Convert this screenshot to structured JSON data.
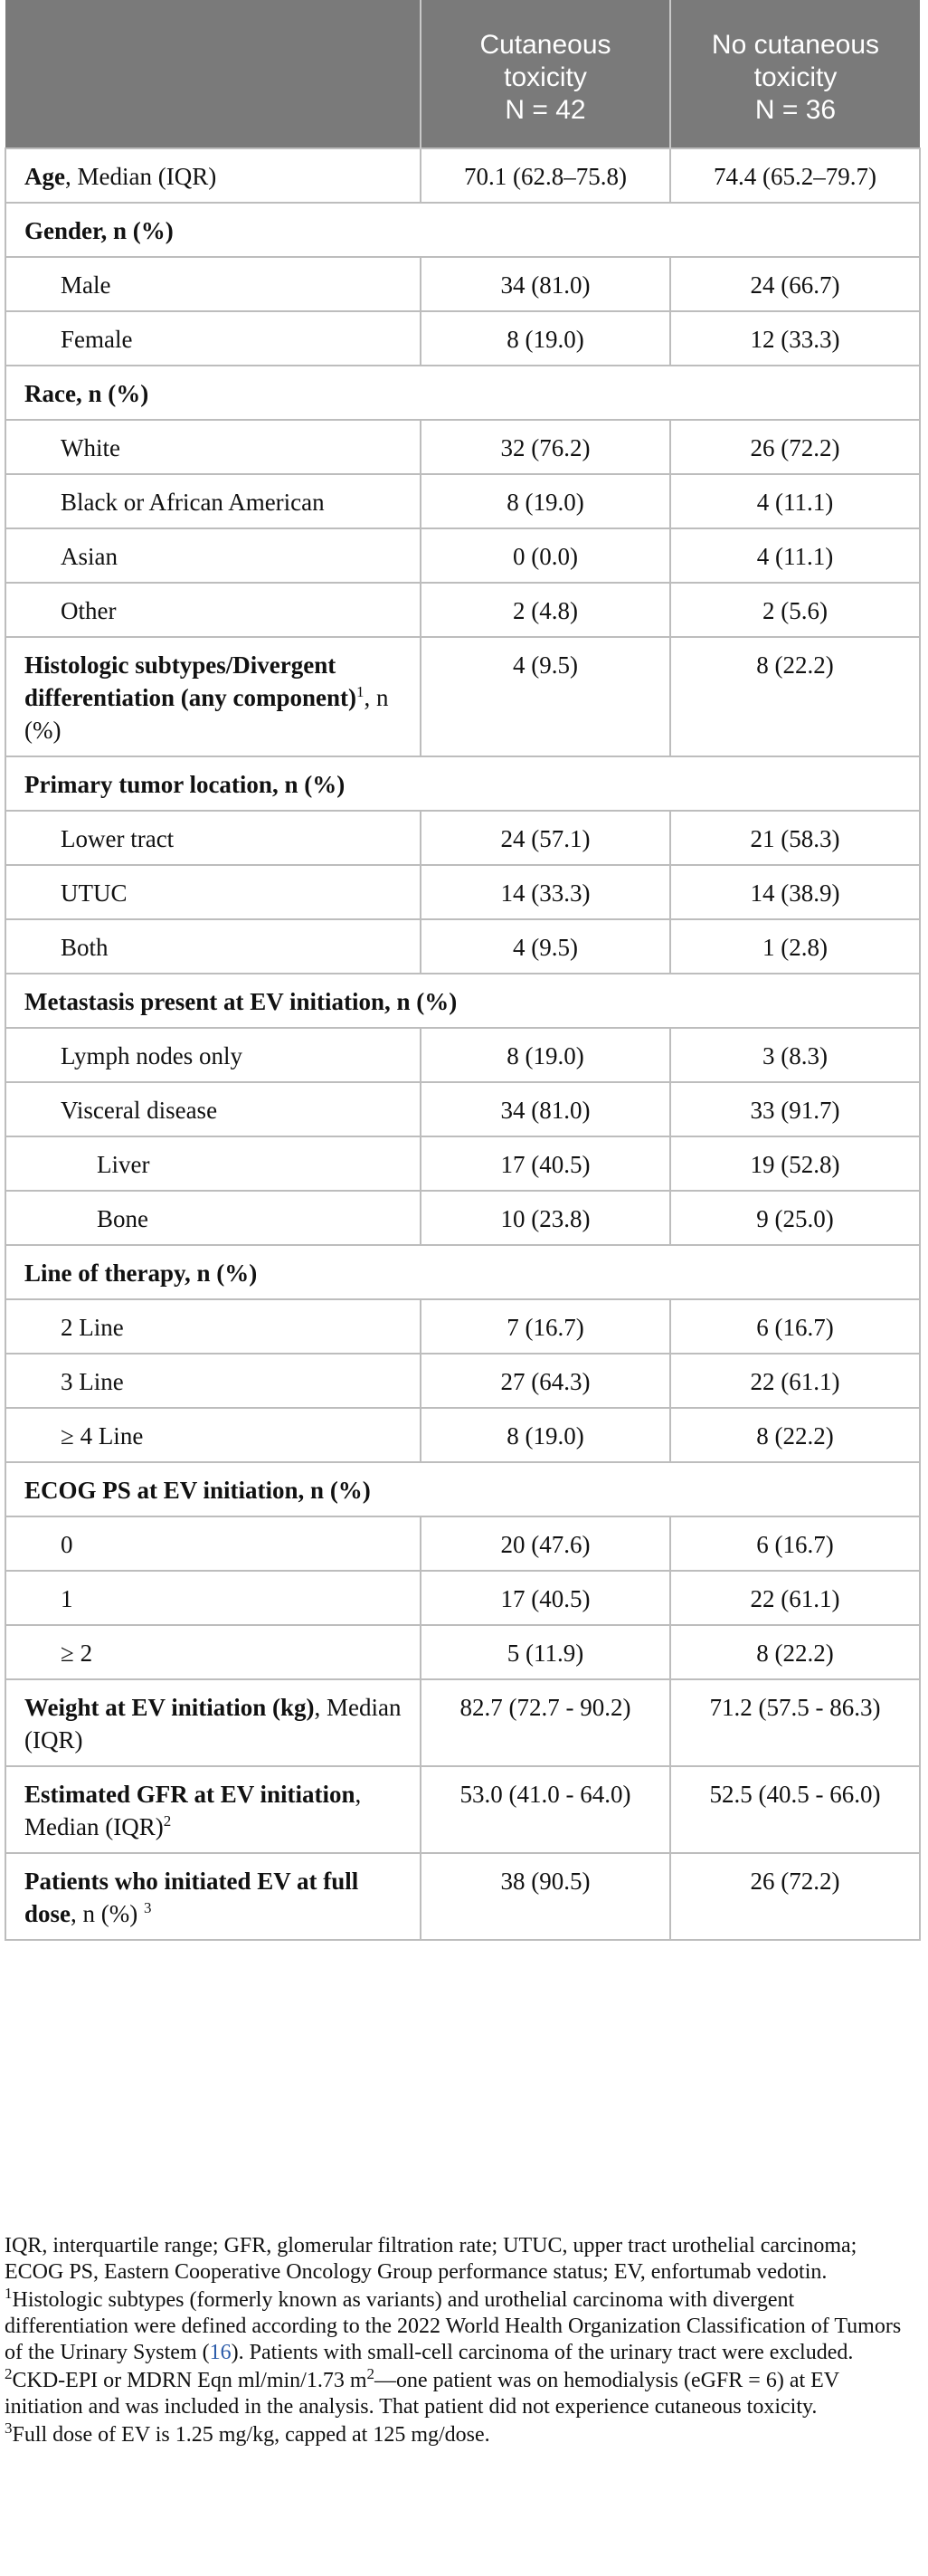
{
  "header": {
    "col1": "",
    "col2_lines": [
      "Cutaneous",
      "toxicity",
      "N = 42"
    ],
    "col3_lines": [
      "No cutaneous",
      "toxicity",
      "N = 36"
    ]
  },
  "rows": [
    {
      "kind": "row",
      "bold": "Age",
      "rest": ", Median (IQR)",
      "v1": "70.1 (62.8–75.8)",
      "v2": "74.4 (65.2–79.7)"
    },
    {
      "kind": "section",
      "label": "Gender, n (%)"
    },
    {
      "kind": "sub",
      "label": "Male",
      "v1": "34 (81.0)",
      "v2": "24 (66.7)"
    },
    {
      "kind": "sub",
      "label": "Female",
      "v1": "8 (19.0)",
      "v2": "12 (33.3)"
    },
    {
      "kind": "section",
      "label": "Race, n (%)"
    },
    {
      "kind": "sub",
      "label": "White",
      "v1": "32 (76.2)",
      "v2": "26 (72.2)"
    },
    {
      "kind": "sub",
      "label": "Black or African American",
      "v1": "8 (19.0)",
      "v2": "4 (11.1)"
    },
    {
      "kind": "sub",
      "label": "Asian",
      "v1": "0 (0.0)",
      "v2": "4 (11.1)"
    },
    {
      "kind": "sub",
      "label": "Other",
      "v1": "2 (4.8)",
      "v2": "2 (5.6)"
    },
    {
      "kind": "row",
      "bold": "Histologic subtypes/Divergent differentiation (any component)",
      "sup": "1",
      "rest": ", n (%)",
      "v1": "4 (9.5)",
      "v2": "8 (22.2)"
    },
    {
      "kind": "section",
      "label": "Primary tumor location, n (%)"
    },
    {
      "kind": "sub",
      "label": "Lower tract",
      "v1": "24 (57.1)",
      "v2": "21 (58.3)"
    },
    {
      "kind": "sub",
      "label": "UTUC",
      "v1": "14 (33.3)",
      "v2": "14 (38.9)"
    },
    {
      "kind": "sub",
      "label": "Both",
      "v1": "4 (9.5)",
      "v2": "1 (2.8)"
    },
    {
      "kind": "section",
      "label": "Metastasis present at EV initiation, n (%)"
    },
    {
      "kind": "sub",
      "label": "Lymph nodes only",
      "v1": "8 (19.0)",
      "v2": "3 (8.3)"
    },
    {
      "kind": "sub",
      "label": "Visceral disease",
      "v1": "34 (81.0)",
      "v2": "33 (91.7)"
    },
    {
      "kind": "sub2",
      "label": "Liver",
      "v1": "17 (40.5)",
      "v2": "19 (52.8)"
    },
    {
      "kind": "sub2",
      "label": "Bone",
      "v1": "10 (23.8)",
      "v2": "9 (25.0)"
    },
    {
      "kind": "section",
      "label": "Line of therapy, n (%)"
    },
    {
      "kind": "sub",
      "label": "2 Line",
      "v1": "7 (16.7)",
      "v2": "6 (16.7)"
    },
    {
      "kind": "sub",
      "label": "3 Line",
      "v1": "27 (64.3)",
      "v2": "22 (61.1)"
    },
    {
      "kind": "sub",
      "label": "≥ 4 Line",
      "v1": "8 (19.0)",
      "v2": "8 (22.2)"
    },
    {
      "kind": "section",
      "label": "ECOG PS at EV initiation, n (%)"
    },
    {
      "kind": "sub",
      "label": "0",
      "v1": "20 (47.6)",
      "v2": "6 (16.7)"
    },
    {
      "kind": "sub",
      "label": "1",
      "v1": "17 (40.5)",
      "v2": "22 (61.1)"
    },
    {
      "kind": "sub",
      "label": "≥ 2",
      "v1": "5 (11.9)",
      "v2": "8 (22.2)"
    },
    {
      "kind": "row",
      "bold": "Weight at EV initiation (kg)",
      "rest": ", Median (IQR)",
      "v1": "82.7 (72.7 - 90.2)",
      "v2": "71.2 (57.5 - 86.3)"
    },
    {
      "kind": "row",
      "bold": "Estimated GFR at EV initiation",
      "rest": ", Median (IQR)",
      "sup_after": "2",
      "v1": "53.0 (41.0 - 64.0)",
      "v2": "52.5 (40.5 - 66.0)"
    },
    {
      "kind": "row",
      "bold": "Patients who initiated EV at full dose",
      "rest": ", n (%) ",
      "sup_after": "3",
      "v1": "38 (90.5)",
      "v2": "26 (72.2)"
    }
  ],
  "footnotes": {
    "abbrev": "IQR, interquartile range; GFR, glomerular filtration rate; UTUC, upper tract urothelial carcinoma; ECOG PS, Eastern Cooperative Oncology Group performance status; EV, enfortumab vedotin.",
    "n1_mark": "1",
    "n1_text_a": "Histologic subtypes (formerly known as variants) and urothelial carcinoma with divergent differentiation were defined according to the 2022 World Health Organization Classification of Tumors of the Urinary System (",
    "n1_ref": "16",
    "n1_text_b": "). Patients with small-cell carcinoma of the urinary tract were excluded.",
    "n2_mark": "2",
    "n2_text_a": "CKD-EPI or MDRN Eqn ml/min/1.73 m",
    "n2_sup": "2",
    "n2_text_b": "—one patient was on hemodialysis (eGFR = 6) at EV initiation and was included in the analysis. That patient did not experience cutaneous toxicity.",
    "n3_mark": "3",
    "n3_text": "Full dose of EV is 1.25 mg/kg, capped at 125 mg/dose."
  }
}
